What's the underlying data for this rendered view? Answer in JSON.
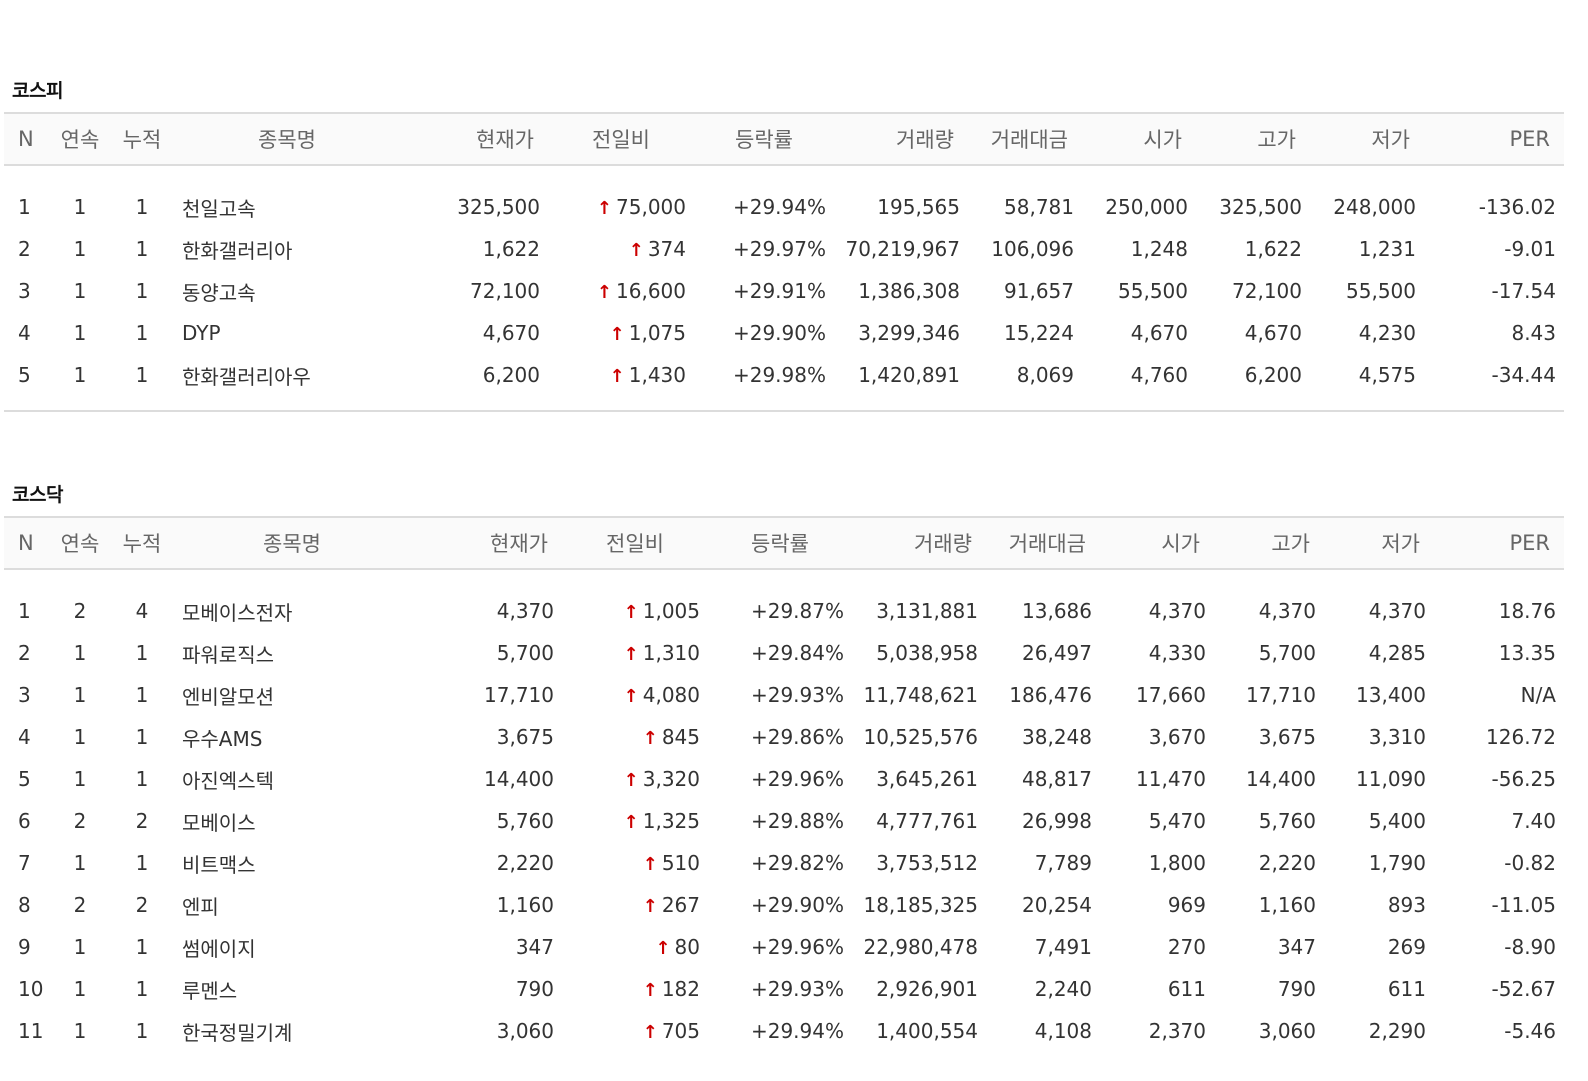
{
  "colors": {
    "up": "#cc0000",
    "header_border": "#dcdcdc",
    "header_bg": "#fafafa"
  },
  "columns": [
    "N",
    "연속",
    "누적",
    "종목명",
    "현재가",
    "전일비",
    "등락률",
    "거래량",
    "거래대금",
    "시가",
    "고가",
    "저가",
    "PER"
  ],
  "icons": {
    "change_arrow": "up-arrow-icon"
  },
  "kospi": {
    "title": "코스피",
    "rows": [
      {
        "n": "1",
        "streak": "1",
        "cumul": "1",
        "name": "천일고속",
        "price": "325,500",
        "change": "75,000",
        "rate": "+29.94%",
        "volume": "195,565",
        "amount": "58,781",
        "open": "250,000",
        "high": "325,500",
        "low": "248,000",
        "per": "-136.02"
      },
      {
        "n": "2",
        "streak": "1",
        "cumul": "1",
        "name": "한화갤러리아",
        "price": "1,622",
        "change": "374",
        "rate": "+29.97%",
        "volume": "70,219,967",
        "amount": "106,096",
        "open": "1,248",
        "high": "1,622",
        "low": "1,231",
        "per": "-9.01"
      },
      {
        "n": "3",
        "streak": "1",
        "cumul": "1",
        "name": "동양고속",
        "price": "72,100",
        "change": "16,600",
        "rate": "+29.91%",
        "volume": "1,386,308",
        "amount": "91,657",
        "open": "55,500",
        "high": "72,100",
        "low": "55,500",
        "per": "-17.54"
      },
      {
        "n": "4",
        "streak": "1",
        "cumul": "1",
        "name": "DYP",
        "price": "4,670",
        "change": "1,075",
        "rate": "+29.90%",
        "volume": "3,299,346",
        "amount": "15,224",
        "open": "4,670",
        "high": "4,670",
        "low": "4,230",
        "per": "8.43"
      },
      {
        "n": "5",
        "streak": "1",
        "cumul": "1",
        "name": "한화갤러리아우",
        "price": "6,200",
        "change": "1,430",
        "rate": "+29.98%",
        "volume": "1,420,891",
        "amount": "8,069",
        "open": "4,760",
        "high": "6,200",
        "low": "4,575",
        "per": "-34.44"
      }
    ]
  },
  "kosdaq": {
    "title": "코스닥",
    "rows": [
      {
        "n": "1",
        "streak": "2",
        "cumul": "4",
        "name": "모베이스전자",
        "price": "4,370",
        "change": "1,005",
        "rate": "+29.87%",
        "volume": "3,131,881",
        "amount": "13,686",
        "open": "4,370",
        "high": "4,370",
        "low": "4,370",
        "per": "18.76"
      },
      {
        "n": "2",
        "streak": "1",
        "cumul": "1",
        "name": "파워로직스",
        "price": "5,700",
        "change": "1,310",
        "rate": "+29.84%",
        "volume": "5,038,958",
        "amount": "26,497",
        "open": "4,330",
        "high": "5,700",
        "low": "4,285",
        "per": "13.35"
      },
      {
        "n": "3",
        "streak": "1",
        "cumul": "1",
        "name": "엔비알모션",
        "price": "17,710",
        "change": "4,080",
        "rate": "+29.93%",
        "volume": "11,748,621",
        "amount": "186,476",
        "open": "17,660",
        "high": "17,710",
        "low": "13,400",
        "per": "N/A"
      },
      {
        "n": "4",
        "streak": "1",
        "cumul": "1",
        "name": "우수AMS",
        "price": "3,675",
        "change": "845",
        "rate": "+29.86%",
        "volume": "10,525,576",
        "amount": "38,248",
        "open": "3,670",
        "high": "3,675",
        "low": "3,310",
        "per": "126.72"
      },
      {
        "n": "5",
        "streak": "1",
        "cumul": "1",
        "name": "아진엑스텍",
        "price": "14,400",
        "change": "3,320",
        "rate": "+29.96%",
        "volume": "3,645,261",
        "amount": "48,817",
        "open": "11,470",
        "high": "14,400",
        "low": "11,090",
        "per": "-56.25"
      },
      {
        "n": "6",
        "streak": "2",
        "cumul": "2",
        "name": "모베이스",
        "price": "5,760",
        "change": "1,325",
        "rate": "+29.88%",
        "volume": "4,777,761",
        "amount": "26,998",
        "open": "5,470",
        "high": "5,760",
        "low": "5,400",
        "per": "7.40"
      },
      {
        "n": "7",
        "streak": "1",
        "cumul": "1",
        "name": "비트맥스",
        "price": "2,220",
        "change": "510",
        "rate": "+29.82%",
        "volume": "3,753,512",
        "amount": "7,789",
        "open": "1,800",
        "high": "2,220",
        "low": "1,790",
        "per": "-0.82"
      },
      {
        "n": "8",
        "streak": "2",
        "cumul": "2",
        "name": "엔피",
        "price": "1,160",
        "change": "267",
        "rate": "+29.90%",
        "volume": "18,185,325",
        "amount": "20,254",
        "open": "969",
        "high": "1,160",
        "low": "893",
        "per": "-11.05"
      },
      {
        "n": "9",
        "streak": "1",
        "cumul": "1",
        "name": "썸에이지",
        "price": "347",
        "change": "80",
        "rate": "+29.96%",
        "volume": "22,980,478",
        "amount": "7,491",
        "open": "270",
        "high": "347",
        "low": "269",
        "per": "-8.90"
      },
      {
        "n": "10",
        "streak": "1",
        "cumul": "1",
        "name": "루멘스",
        "price": "790",
        "change": "182",
        "rate": "+29.93%",
        "volume": "2,926,901",
        "amount": "2,240",
        "open": "611",
        "high": "790",
        "low": "611",
        "per": "-52.67"
      },
      {
        "n": "11",
        "streak": "1",
        "cumul": "1",
        "name": "한국정밀기계",
        "price": "3,060",
        "change": "705",
        "rate": "+29.94%",
        "volume": "1,400,554",
        "amount": "4,108",
        "open": "2,370",
        "high": "3,060",
        "low": "2,290",
        "per": "-5.46"
      }
    ]
  }
}
